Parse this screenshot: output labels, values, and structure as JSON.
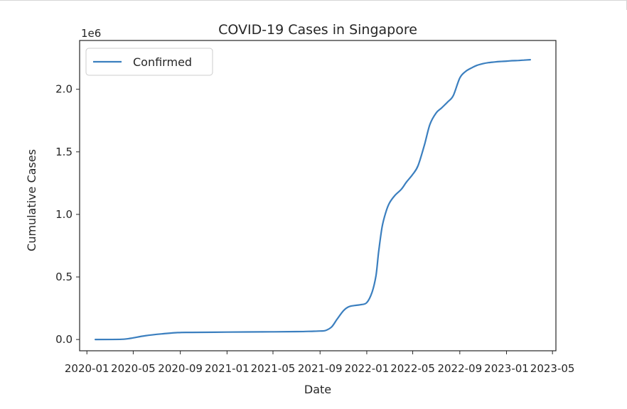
{
  "chart_data": {
    "type": "line",
    "title": "COVID-19 Cases in Singapore",
    "xlabel": "Date",
    "ylabel": "Cumulative Cases",
    "y_offset_label": "1e6",
    "y_scale": 1000000,
    "xlim": [
      "2019-12-13",
      "2023-05-10"
    ],
    "ylim": [
      -90000,
      2390000
    ],
    "grid": false,
    "legend_position": "upper left",
    "line_color": "#3b7fbf",
    "x_ticks": [
      {
        "date": "2020-01-01",
        "label": "2020-01"
      },
      {
        "date": "2020-05-01",
        "label": "2020-05"
      },
      {
        "date": "2020-09-01",
        "label": "2020-09"
      },
      {
        "date": "2021-01-01",
        "label": "2021-01"
      },
      {
        "date": "2021-05-01",
        "label": "2021-05"
      },
      {
        "date": "2021-09-01",
        "label": "2021-09"
      },
      {
        "date": "2022-01-01",
        "label": "2022-01"
      },
      {
        "date": "2022-05-01",
        "label": "2022-05"
      },
      {
        "date": "2022-09-01",
        "label": "2022-09"
      },
      {
        "date": "2023-01-01",
        "label": "2023-01"
      },
      {
        "date": "2023-05-01",
        "label": "2023-05"
      }
    ],
    "y_ticks": [
      {
        "value": 0,
        "label": "0.0"
      },
      {
        "value": 500000,
        "label": "0.5"
      },
      {
        "value": 1000000,
        "label": "1.0"
      },
      {
        "value": 1500000,
        "label": "1.5"
      },
      {
        "value": 2000000,
        "label": "2.0"
      }
    ],
    "series": [
      {
        "name": "Confirmed",
        "x": [
          "2020-01-23",
          "2020-04-01",
          "2020-04-25",
          "2020-06-01",
          "2020-07-15",
          "2020-08-25",
          "2020-10-01",
          "2021-01-01",
          "2021-04-01",
          "2021-07-01",
          "2021-08-01",
          "2021-09-01",
          "2021-09-15",
          "2021-10-01",
          "2021-10-15",
          "2021-11-01",
          "2021-11-15",
          "2021-12-01",
          "2021-12-15",
          "2022-01-01",
          "2022-01-15",
          "2022-01-25",
          "2022-02-01",
          "2022-02-10",
          "2022-02-20",
          "2022-03-01",
          "2022-03-15",
          "2022-04-01",
          "2022-04-15",
          "2022-05-01",
          "2022-05-15",
          "2022-06-01",
          "2022-06-15",
          "2022-07-01",
          "2022-07-15",
          "2022-08-01",
          "2022-08-15",
          "2022-09-01",
          "2022-09-15",
          "2022-10-01",
          "2022-10-15",
          "2022-11-01",
          "2022-11-15",
          "2022-12-01",
          "2022-12-15",
          "2023-01-01",
          "2023-01-15",
          "2023-02-01",
          "2023-02-15",
          "2023-03-04"
        ],
        "y": [
          0,
          2000,
          10000,
          30000,
          45000,
          55000,
          57000,
          59000,
          61000,
          63000,
          65000,
          68000,
          72000,
          100000,
          160000,
          230000,
          262000,
          272000,
          278000,
          295000,
          380000,
          510000,
          700000,
          900000,
          1020000,
          1090000,
          1150000,
          1200000,
          1260000,
          1320000,
          1390000,
          1560000,
          1720000,
          1810000,
          1850000,
          1900000,
          1950000,
          2090000,
          2140000,
          2170000,
          2190000,
          2205000,
          2213000,
          2218000,
          2222000,
          2225000,
          2228000,
          2230000,
          2233000,
          2236000
        ]
      }
    ]
  }
}
